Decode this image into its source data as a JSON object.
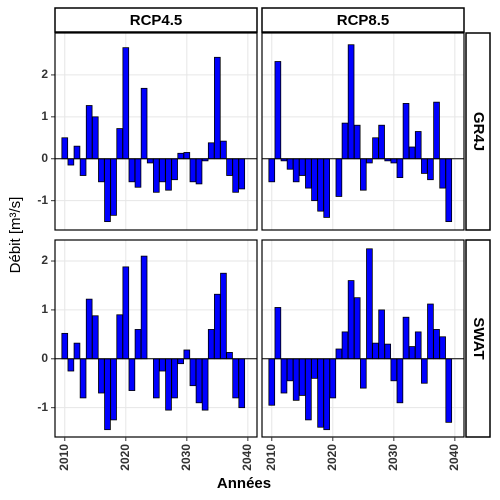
{
  "chart_data": {
    "type": "bar",
    "x_label": "Années",
    "y_label": "Débit [m³/s]",
    "color": "#0000ff",
    "columns": [
      "RCP4.5",
      "RCP8.5"
    ],
    "rows": [
      "GR4J",
      "SWAT"
    ],
    "x": [
      2010,
      2011,
      2012,
      2013,
      2014,
      2015,
      2016,
      2017,
      2018,
      2019,
      2020,
      2021,
      2022,
      2023,
      2024,
      2025,
      2026,
      2027,
      2028,
      2029,
      2030,
      2031,
      2032,
      2033,
      2034,
      2035,
      2036,
      2037,
      2038,
      2039
    ],
    "xlim": [
      2008.4,
      2041.5
    ],
    "xticks": [
      2010,
      2020,
      2030,
      2040
    ],
    "row_scales": [
      {
        "ylim": [
          -1.7,
          3.0
        ],
        "yticks": [
          -1,
          0,
          1,
          2
        ]
      },
      {
        "ylim": [
          -1.6,
          2.43
        ],
        "yticks": [
          -1,
          0,
          1,
          2
        ]
      }
    ],
    "panels": [
      [
        {
          "values": [
            0.5,
            -0.15,
            0.3,
            -0.4,
            1.27,
            1.0,
            -0.55,
            -1.5,
            -1.35,
            0.72,
            2.65,
            -0.55,
            -0.68,
            1.68,
            -0.1,
            -0.8,
            -0.55,
            -0.75,
            -0.5,
            0.13,
            0.15,
            -0.55,
            -0.6,
            -0.05,
            0.38,
            2.42,
            0.42,
            -0.4,
            -0.8,
            -0.72
          ]
        },
        {
          "values": [
            -0.55,
            2.32,
            -0.05,
            -0.25,
            -0.55,
            -0.4,
            -0.7,
            -1.0,
            -1.25,
            -1.4,
            0.0,
            -0.9,
            0.85,
            2.72,
            0.8,
            -0.75,
            -0.1,
            0.5,
            0.8,
            -0.05,
            -0.1,
            -0.45,
            1.32,
            0.28,
            0.65,
            -0.35,
            -0.5,
            1.35,
            -0.7,
            -1.5
          ]
        }
      ],
      [
        {
          "values": [
            0.52,
            -0.25,
            0.32,
            -0.8,
            1.22,
            0.88,
            -0.7,
            -1.45,
            -1.25,
            0.9,
            1.88,
            -0.65,
            0.6,
            2.1,
            0.0,
            -0.8,
            -0.25,
            -1.05,
            -0.8,
            -0.1,
            0.18,
            -0.55,
            -0.9,
            -1.05,
            0.6,
            1.32,
            1.75,
            0.13,
            -0.8,
            -1.0
          ]
        },
        {
          "values": [
            -0.95,
            1.05,
            -0.7,
            -0.45,
            -0.85,
            -0.75,
            -1.25,
            -0.4,
            -1.4,
            -1.45,
            -0.8,
            0.2,
            0.55,
            1.6,
            1.25,
            -0.6,
            2.25,
            0.32,
            1.0,
            0.3,
            -0.45,
            -0.9,
            0.85,
            0.25,
            0.55,
            -0.5,
            1.12,
            0.6,
            0.45,
            -1.3
          ]
        }
      ]
    ]
  }
}
